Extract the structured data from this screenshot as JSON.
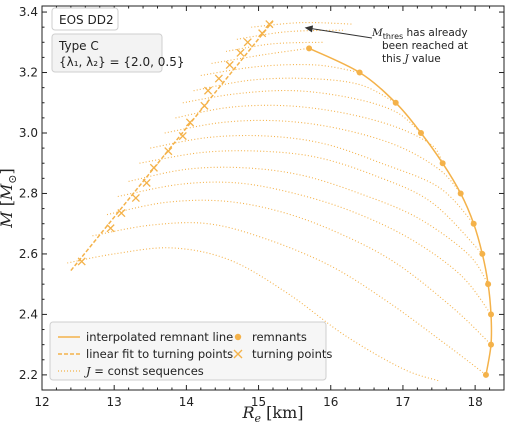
{
  "chart_data": {
    "type": "line",
    "xlabel": "R_e [km]",
    "ylabel": "M [M_⊙]",
    "xlim": [
      12,
      18.4
    ],
    "ylim": [
      2.15,
      3.42
    ],
    "xticks": [
      "12",
      "13",
      "14",
      "15",
      "16",
      "17",
      "18"
    ],
    "yticks": [
      "2.2",
      "2.4",
      "2.6",
      "2.8",
      "3.0",
      "3.2",
      "3.4"
    ],
    "grid": false,
    "color": "#f4b24a",
    "eos_label": "EOS DD2",
    "type_label": "Type C",
    "lambda_label": "{λ₁, λ₂} = {2.0, 0.5}",
    "annotation": {
      "line1_math": "M",
      "line1_sub": "thres",
      "line1_text": " has already",
      "line2": "been reached at",
      "line3_pre": "this ",
      "line3_math": "J",
      "line3_post": " value",
      "target": [
        15.25,
        3.355
      ]
    },
    "legend": {
      "interpolated": "interpolated remnant line",
      "linear_fit": "linear fit to turning points",
      "sequences_math": "J",
      "sequences_text": " = const sequences",
      "remnants": "remnants",
      "turning": "turning points"
    },
    "remnant_points": [
      {
        "x": 15.7,
        "y": 3.28
      },
      {
        "x": 16.4,
        "y": 3.2
      },
      {
        "x": 16.9,
        "y": 3.1
      },
      {
        "x": 17.25,
        "y": 3.0
      },
      {
        "x": 17.55,
        "y": 2.9
      },
      {
        "x": 17.8,
        "y": 2.8
      },
      {
        "x": 17.98,
        "y": 2.7
      },
      {
        "x": 18.1,
        "y": 2.6
      },
      {
        "x": 18.18,
        "y": 2.5
      },
      {
        "x": 18.22,
        "y": 2.4
      },
      {
        "x": 18.22,
        "y": 2.3
      },
      {
        "x": 18.15,
        "y": 2.2
      }
    ],
    "turning_points": [
      {
        "x": 12.55,
        "y": 2.575
      },
      {
        "x": 12.95,
        "y": 2.685
      },
      {
        "x": 13.1,
        "y": 2.735
      },
      {
        "x": 13.3,
        "y": 2.785
      },
      {
        "x": 13.45,
        "y": 2.835
      },
      {
        "x": 13.55,
        "y": 2.885
      },
      {
        "x": 13.75,
        "y": 2.94
      },
      {
        "x": 13.95,
        "y": 2.99
      },
      {
        "x": 14.05,
        "y": 3.035
      },
      {
        "x": 14.25,
        "y": 3.09
      },
      {
        "x": 14.3,
        "y": 3.14
      },
      {
        "x": 14.45,
        "y": 3.18
      },
      {
        "x": 14.6,
        "y": 3.225
      },
      {
        "x": 14.75,
        "y": 3.265
      },
      {
        "x": 14.85,
        "y": 3.3
      },
      {
        "x": 15.05,
        "y": 3.33
      },
      {
        "x": 15.15,
        "y": 3.36
      }
    ],
    "fit_line": {
      "x": [
        12.4,
        15.2
      ],
      "y": [
        2.545,
        3.37
      ]
    },
    "sequences": [
      {
        "points": [
          [
            12.35,
            2.57
          ],
          [
            13.0,
            2.6
          ],
          [
            13.8,
            2.62
          ],
          [
            14.6,
            2.58
          ],
          [
            15.4,
            2.47
          ],
          [
            16.2,
            2.33
          ],
          [
            17.0,
            2.22
          ],
          [
            17.5,
            2.18
          ]
        ]
      },
      {
        "points": [
          [
            12.7,
            2.66
          ],
          [
            13.5,
            2.695
          ],
          [
            14.3,
            2.7
          ],
          [
            15.1,
            2.65
          ],
          [
            16.0,
            2.56
          ],
          [
            16.8,
            2.44
          ],
          [
            17.6,
            2.3
          ],
          [
            18.15,
            2.2
          ]
        ]
      },
      {
        "points": [
          [
            12.9,
            2.73
          ],
          [
            13.7,
            2.77
          ],
          [
            14.5,
            2.775
          ],
          [
            15.3,
            2.74
          ],
          [
            16.1,
            2.67
          ],
          [
            16.9,
            2.57
          ],
          [
            17.7,
            2.42
          ],
          [
            18.22,
            2.3
          ]
        ]
      },
      {
        "points": [
          [
            13.05,
            2.79
          ],
          [
            13.9,
            2.83
          ],
          [
            14.7,
            2.835
          ],
          [
            15.5,
            2.8
          ],
          [
            16.3,
            2.74
          ],
          [
            17.1,
            2.65
          ],
          [
            17.8,
            2.53
          ],
          [
            18.22,
            2.4
          ]
        ]
      },
      {
        "points": [
          [
            13.2,
            2.84
          ],
          [
            14.0,
            2.88
          ],
          [
            14.8,
            2.885
          ],
          [
            15.6,
            2.86
          ],
          [
            16.4,
            2.8
          ],
          [
            17.2,
            2.72
          ],
          [
            17.9,
            2.6
          ],
          [
            18.18,
            2.5
          ]
        ]
      },
      {
        "points": [
          [
            13.35,
            2.9
          ],
          [
            14.2,
            2.935
          ],
          [
            15.0,
            2.94
          ],
          [
            15.8,
            2.92
          ],
          [
            16.6,
            2.86
          ],
          [
            17.4,
            2.77
          ],
          [
            18.1,
            2.6
          ]
        ]
      },
      {
        "points": [
          [
            13.5,
            2.95
          ],
          [
            14.3,
            2.985
          ],
          [
            15.1,
            2.99
          ],
          [
            15.9,
            2.965
          ],
          [
            16.7,
            2.9
          ],
          [
            17.5,
            2.82
          ],
          [
            17.98,
            2.7
          ]
        ]
      },
      {
        "points": [
          [
            13.7,
            3.0
          ],
          [
            14.5,
            3.035
          ],
          [
            15.3,
            3.04
          ],
          [
            16.1,
            3.015
          ],
          [
            16.9,
            2.96
          ],
          [
            17.5,
            2.88
          ],
          [
            17.8,
            2.8
          ]
        ]
      },
      {
        "points": [
          [
            13.85,
            3.05
          ],
          [
            14.6,
            3.085
          ],
          [
            15.4,
            3.09
          ],
          [
            16.2,
            3.065
          ],
          [
            16.9,
            3.02
          ],
          [
            17.4,
            2.96
          ],
          [
            17.55,
            2.9
          ]
        ]
      },
      {
        "points": [
          [
            13.95,
            3.1
          ],
          [
            14.7,
            3.13
          ],
          [
            15.5,
            3.14
          ],
          [
            16.3,
            3.115
          ],
          [
            16.9,
            3.07
          ],
          [
            17.25,
            3.0
          ]
        ]
      },
      {
        "points": [
          [
            14.1,
            3.14
          ],
          [
            14.9,
            3.175
          ],
          [
            15.7,
            3.18
          ],
          [
            16.4,
            3.16
          ],
          [
            16.9,
            3.1
          ]
        ]
      },
      {
        "points": [
          [
            14.2,
            3.19
          ],
          [
            15.0,
            3.22
          ],
          [
            15.8,
            3.225
          ],
          [
            16.4,
            3.2
          ]
        ]
      },
      {
        "points": [
          [
            14.35,
            3.23
          ],
          [
            15.1,
            3.26
          ],
          [
            15.7,
            3.28
          ]
        ]
      },
      {
        "points": [
          [
            14.55,
            3.27
          ],
          [
            15.2,
            3.295
          ],
          [
            15.9,
            3.3
          ]
        ]
      },
      {
        "points": [
          [
            14.7,
            3.31
          ],
          [
            15.4,
            3.335
          ],
          [
            16.2,
            3.34
          ]
        ]
      },
      {
        "points": [
          [
            14.9,
            3.35
          ],
          [
            15.6,
            3.365
          ],
          [
            16.3,
            3.36
          ]
        ]
      }
    ]
  }
}
